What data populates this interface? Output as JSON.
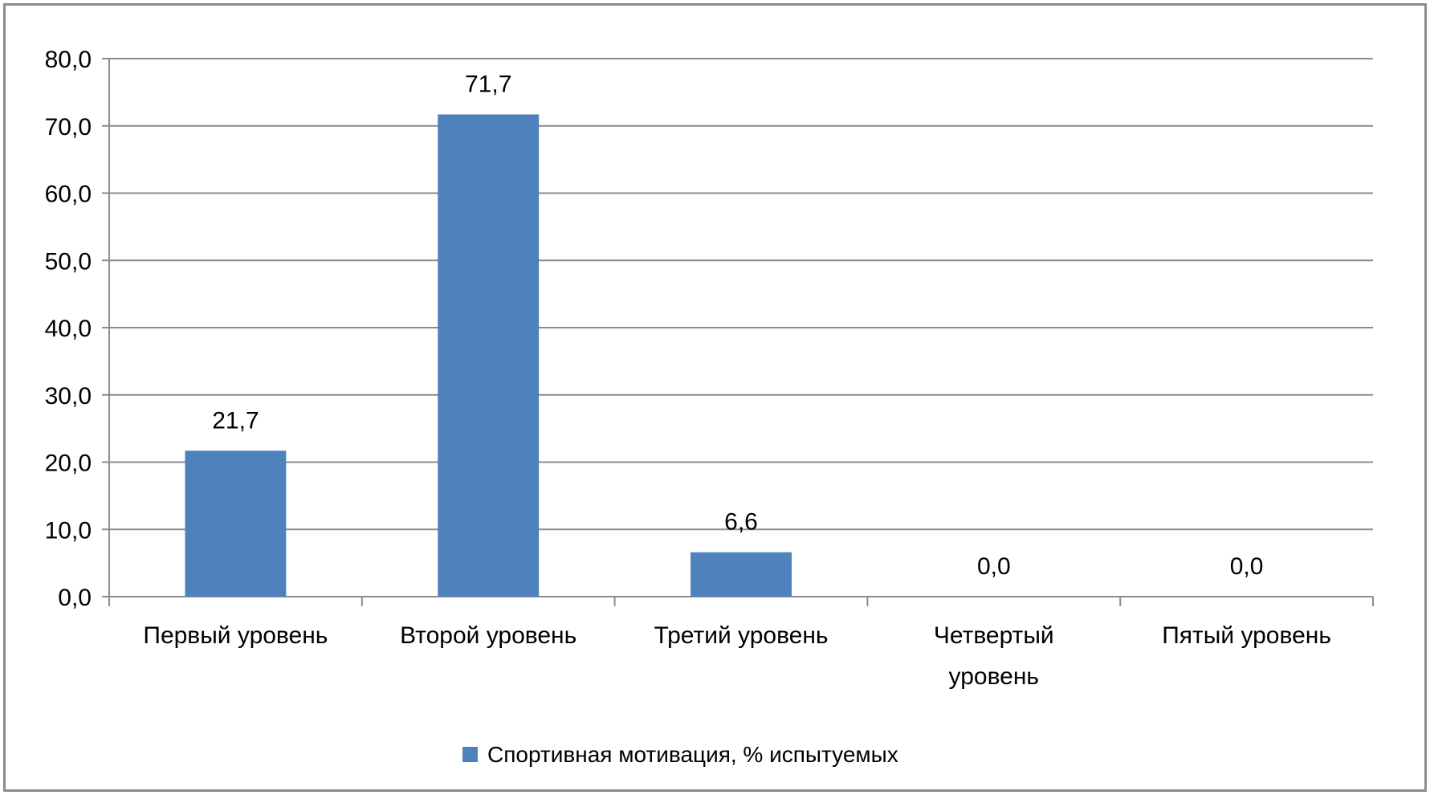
{
  "chart_data": {
    "type": "bar",
    "title": "",
    "xlabel": "",
    "ylabel": "",
    "categories": [
      [
        "Первый уровень"
      ],
      [
        "Второй уровень"
      ],
      [
        "Третий уровень"
      ],
      [
        "Четвертый",
        "уровень"
      ],
      [
        "Пятый уровень"
      ]
    ],
    "series": [
      {
        "name": "Спортивная мотивация, % испытуемых",
        "values": [
          21.7,
          71.7,
          6.6,
          0.0,
          0.0
        ],
        "data_labels": [
          "21,7",
          "71,7",
          "6,6",
          "0,0",
          "0,0"
        ],
        "color": "#4f81bd"
      }
    ],
    "ylim": [
      0,
      80
    ],
    "y_ticks": [
      0,
      10,
      20,
      30,
      40,
      50,
      60,
      70,
      80
    ],
    "y_tick_labels": [
      "0,0",
      "10,0",
      "20,0",
      "30,0",
      "40,0",
      "50,0",
      "60,0",
      "70,0",
      "80,0"
    ],
    "grid": true,
    "legend_position": "bottom",
    "colors": {
      "bar": "#4f81bd",
      "grid": "#8c8c8c",
      "axis": "#8c8c8c",
      "frame": "#8c8c8c"
    }
  }
}
